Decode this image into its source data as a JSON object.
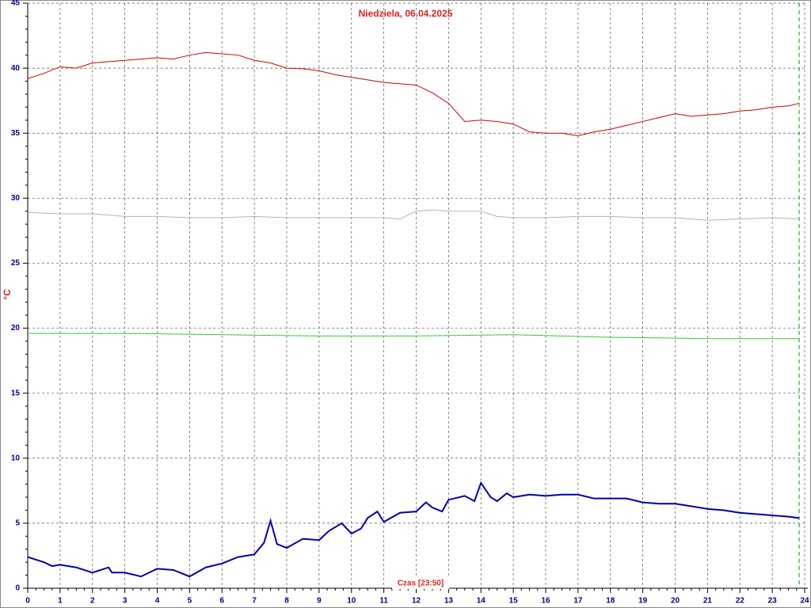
{
  "chart_data": {
    "type": "line",
    "title": "Niedziela, 06.04.2025",
    "ylabel": "°C",
    "xlabel": "Czas [23:50]",
    "xlim": [
      0,
      24
    ],
    "ylim": [
      0,
      45
    ],
    "xticks": [
      0,
      1,
      2,
      3,
      4,
      5,
      6,
      7,
      8,
      9,
      10,
      11,
      12,
      13,
      14,
      15,
      16,
      17,
      18,
      19,
      20,
      21,
      22,
      23,
      24
    ],
    "yticks": [
      0,
      5,
      10,
      15,
      20,
      25,
      30,
      35,
      40,
      45
    ],
    "grid": true,
    "current_x": 23.83,
    "current_color": "#00a000",
    "series": [
      {
        "color": "#cc0000",
        "width": 1,
        "x": [
          0,
          0.5,
          1,
          1.5,
          2,
          2.5,
          3,
          3.5,
          4,
          4.5,
          5,
          5.5,
          6,
          6.5,
          7,
          7.5,
          8,
          8.5,
          9,
          9.5,
          10,
          10.5,
          11,
          11.5,
          12,
          12.5,
          13,
          13.5,
          14,
          14.5,
          15,
          15.5,
          16,
          16.5,
          17,
          17.5,
          18,
          18.5,
          19,
          19.5,
          20,
          20.5,
          21,
          21.5,
          22,
          22.5,
          23,
          23.5,
          23.83
        ],
        "values": [
          39.2,
          39.6,
          40.1,
          40.0,
          40.4,
          40.5,
          40.6,
          40.7,
          40.8,
          40.7,
          41.0,
          41.2,
          41.1,
          41.0,
          40.6,
          40.4,
          40.0,
          39.95,
          39.8,
          39.5,
          39.3,
          39.1,
          38.9,
          38.8,
          38.7,
          38.1,
          37.3,
          35.9,
          36.0,
          35.9,
          35.7,
          35.1,
          35.0,
          35.0,
          34.8,
          35.1,
          35.3,
          35.6,
          35.9,
          36.2,
          36.5,
          36.3,
          36.4,
          36.5,
          36.7,
          36.8,
          37.0,
          37.1,
          37.3
        ]
      },
      {
        "color": "#b4b4b4",
        "width": 1,
        "x": [
          0,
          1,
          2,
          3,
          4,
          5,
          6,
          7,
          8,
          9,
          10,
          11,
          11.5,
          12,
          12.5,
          13,
          13.5,
          14,
          14.5,
          15,
          16,
          17,
          18,
          19,
          20,
          21,
          22,
          23,
          23.83
        ],
        "values": [
          28.9,
          28.8,
          28.8,
          28.6,
          28.6,
          28.5,
          28.5,
          28.6,
          28.5,
          28.5,
          28.5,
          28.5,
          28.4,
          29.0,
          29.1,
          29.0,
          29.0,
          29.0,
          28.6,
          28.5,
          28.5,
          28.6,
          28.6,
          28.5,
          28.5,
          28.3,
          28.4,
          28.5,
          28.4
        ]
      },
      {
        "color": "#33cc33",
        "width": 1,
        "x": [
          0,
          3,
          6,
          9,
          12,
          15,
          18,
          21,
          23.83
        ],
        "values": [
          19.6,
          19.6,
          19.5,
          19.4,
          19.4,
          19.5,
          19.3,
          19.2,
          19.2
        ]
      },
      {
        "color": "#0000aa",
        "width": 2,
        "x": [
          0,
          0.5,
          0.75,
          1,
          1.5,
          2,
          2.5,
          2.6,
          3,
          3.5,
          4,
          4.5,
          5,
          5.5,
          6,
          6.5,
          7,
          7.3,
          7.5,
          7.7,
          8,
          8.5,
          9,
          9.3,
          9.7,
          10,
          10.3,
          10.5,
          10.8,
          11,
          11.5,
          12,
          12.3,
          12.5,
          12.8,
          13,
          13.5,
          13.8,
          14,
          14.3,
          14.5,
          14.8,
          15,
          15.5,
          16,
          16.5,
          17,
          17.5,
          18,
          18.5,
          19,
          19.5,
          20,
          20.5,
          21,
          21.5,
          22,
          22.5,
          23,
          23.5,
          23.83
        ],
        "values": [
          2.4,
          2.0,
          1.7,
          1.8,
          1.6,
          1.2,
          1.6,
          1.2,
          1.2,
          0.9,
          1.5,
          1.4,
          0.9,
          1.6,
          1.9,
          2.4,
          2.6,
          3.5,
          5.2,
          3.4,
          3.1,
          3.8,
          3.7,
          4.4,
          5.0,
          4.2,
          4.6,
          5.4,
          5.9,
          5.1,
          5.8,
          5.9,
          6.6,
          6.2,
          5.9,
          6.8,
          7.1,
          6.7,
          8.1,
          7.0,
          6.7,
          7.3,
          7.0,
          7.2,
          7.1,
          7.2,
          7.2,
          6.9,
          6.9,
          6.9,
          6.6,
          6.5,
          6.5,
          6.3,
          6.1,
          6.0,
          5.8,
          5.7,
          5.6,
          5.5,
          5.4
        ]
      }
    ]
  }
}
